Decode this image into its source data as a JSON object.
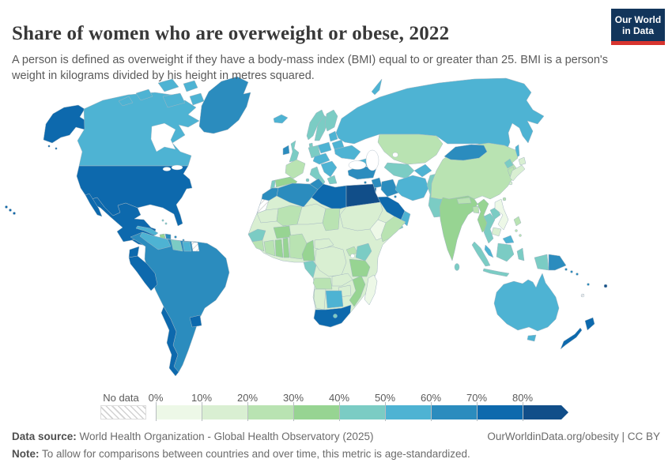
{
  "header": {
    "title": "Share of women who are overweight or obese, 2022",
    "subtitle": "A person is defined as overweight if they have a body-mass index (BMI) equal to or greater than 25. BMI is a person's weight in kilograms divided by his height in metres squared.",
    "logo": {
      "line1": "Our World",
      "line2": "in Data",
      "bg_color": "#12355b",
      "accent_color": "#d7342e"
    }
  },
  "legend": {
    "no_data_label": "No data",
    "ticks": [
      "0%",
      "10%",
      "20%",
      "30%",
      "40%",
      "50%",
      "60%",
      "70%",
      "80%"
    ],
    "bins": [
      {
        "range": "0-10%",
        "color": "#edf8e7"
      },
      {
        "range": "10-20%",
        "color": "#d9efd2"
      },
      {
        "range": "20-30%",
        "color": "#b9e3b2"
      },
      {
        "range": "30-40%",
        "color": "#97d492"
      },
      {
        "range": "40-50%",
        "color": "#7bccc4"
      },
      {
        "range": "50-60%",
        "color": "#4eb3d3"
      },
      {
        "range": "60-70%",
        "color": "#2b8cbe"
      },
      {
        "range": "70-80%",
        "color": "#0d69ad"
      },
      {
        "range": "80%+",
        "color": "#114e89"
      }
    ]
  },
  "footer": {
    "source_label": "Data source:",
    "source_text": " World Health Organization - Global Health Observatory (2025)",
    "link_text": "OurWorldinData.org/obesity | CC BY",
    "note_label": "Note:",
    "note_text": " To allow for comparisons between countries and over time, this metric is age-standardized."
  },
  "chart_data": {
    "type": "choropleth_map",
    "title": "Share of women who are overweight or obese, 2022",
    "unit": "% of women (age-standardized)",
    "legend_bins": [
      "0-10%",
      "10-20%",
      "20-30%",
      "30-40%",
      "40-50%",
      "50-60%",
      "60-70%",
      "70-80%",
      "80%+"
    ],
    "no_data_style": "hatched",
    "regions": {
      "Canada": 5,
      "United States": 7,
      "Greenland": 6,
      "Mexico": 7,
      "Guatemala-Honduras": 7,
      "Nicaragua-Panama": 6,
      "Cuba": 5,
      "Haiti": 3,
      "Dominican Republic": 6,
      "Jamaica": 6,
      "Puerto Rico": 6,
      "Bahamas": 4,
      "Lesser Antilles": 6,
      "South America (base)": 6,
      "Venezuela": 5,
      "Guyana": 4,
      "Suriname": 5,
      "French Guiana": null,
      "Ecuador": 7,
      "Peru": 7,
      "Paraguay": 7,
      "Chile": 7,
      "Iceland": 5,
      "Ireland": 6,
      "United Kingdom": 4,
      "Norway": 4,
      "Sweden": 4,
      "Finland": 4,
      "Denmark": 4,
      "Baltic states": 5,
      "Belarus": 5,
      "Poland": 5,
      "Germany": 4,
      "France": 2,
      "Spain": 3,
      "Portugal": 4,
      "Italy": 4,
      "Central Europe": 5,
      "Balkans": 5,
      "Greece": 4,
      "Ukraine": 5,
      "Russia": 5,
      "Kazakhstan": 2,
      "Uzbekistan-Turkmenistan": 4,
      "Kyrgyzstan-Tajikistan": 5,
      "Caucasus": 5,
      "Turkey": 6,
      "Cyprus": 6,
      "Syria": 6,
      "Israel-Jordan": 7,
      "Iraq": 6,
      "Kuwait": 6,
      "Iran": 5,
      "Saudi Arabia": 7,
      "Yemen": 4,
      "Oman": 5,
      "Afghanistan": 4,
      "Pakistan": 4,
      "India": 3,
      "Nepal": 2,
      "Bangladesh": 2,
      "Sri Lanka": 4,
      "China": 2,
      "Mongolia": 6,
      "North Korea": 4,
      "South Korea": 2,
      "Japan": 1,
      "Taiwan": 2,
      "Myanmar": 3,
      "Thailand": 4,
      "Laos": 4,
      "Vietnam": 0,
      "Cambodia": 1,
      "Malaysia": 5,
      "Indonesia": 4,
      "Philippines": 2,
      "Papua New Guinea": 6,
      "Solomon Islands": 6,
      "Vanuatu": 6,
      "Fiji": 8,
      "New Caledonia": null,
      "Australia": 5,
      "New Zealand": 7,
      "Africa (base)": 1,
      "Morocco": 6,
      "Western Sahara": null,
      "Algeria": 6,
      "Tunisia": 6,
      "Libya": 7,
      "Egypt": 8,
      "Mauritania": 1,
      "Mali": 2,
      "Niger": 1,
      "Chad": 2,
      "Sudan": 1,
      "Ethiopia": 0,
      "Somalia": 2,
      "Senegal-Guinea": 4,
      "Sierra Leone-Liberia": 2,
      "Cote d'Ivoire": 2,
      "Ghana": 3,
      "Togo-Benin": 3,
      "Burkina Faso": 3,
      "Nigeria": 2,
      "Cameroon": 3,
      "Central African Republic": 1,
      "Gabon-Congo": 4,
      "DR Congo": 1,
      "Uganda": 2,
      "Kenya": 4,
      "Tanzania": 3,
      "Angola": 2,
      "Zambia": 1,
      "Zimbabwe": 1,
      "Mozambique": 3,
      "Namibia": 1,
      "Botswana": 5,
      "South Africa": 7,
      "Lesotho": 4,
      "Madagascar": 0
    }
  }
}
